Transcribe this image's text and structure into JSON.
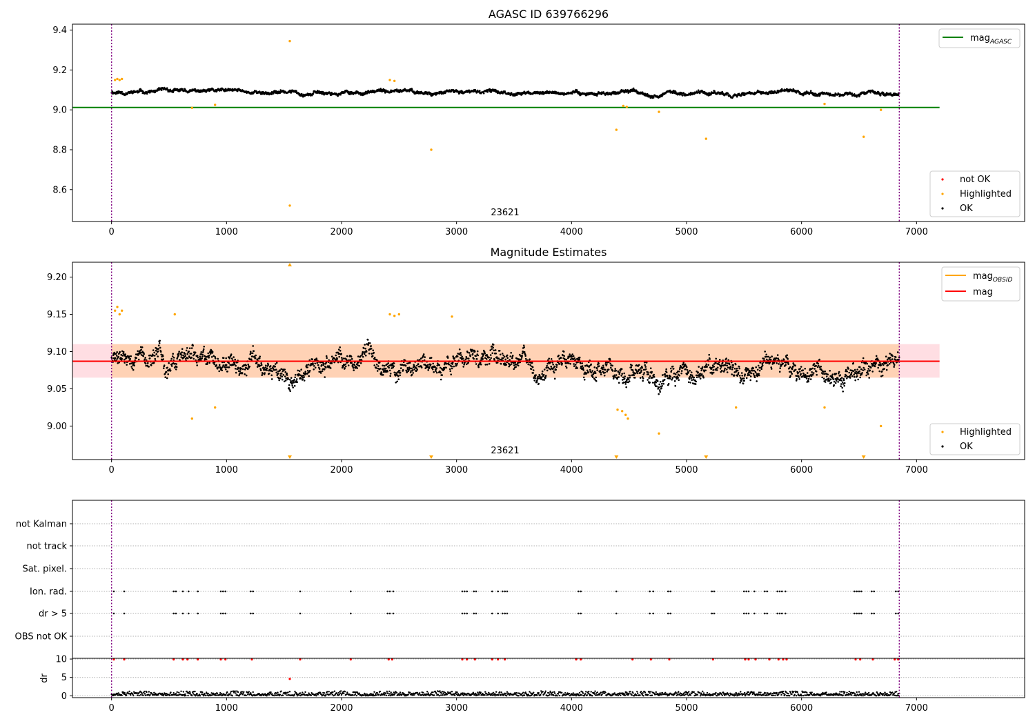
{
  "chart_data": [
    {
      "type": "scatter",
      "title": "AGASC ID 639766296",
      "xlim": [
        -340,
        7940
      ],
      "ylim": [
        8.44,
        9.43
      ],
      "xticks": [
        "0",
        "1000",
        "2000",
        "3000",
        "4000",
        "5000",
        "6000",
        "7000"
      ],
      "yticks": [
        "8.6",
        "8.8",
        "9.0",
        "9.2",
        "9.4"
      ],
      "vlines": [
        0,
        6850
      ],
      "annotation": {
        "text": "23621",
        "x": 3420,
        "y": 8.46
      },
      "legend_lines": [
        {
          "label": "mag",
          "sub": "AGASC",
          "color": "#008000"
        }
      ],
      "legend_points": [
        {
          "label": "not OK",
          "color": "#ff0000"
        },
        {
          "label": "Highlighted",
          "color": "#ffa500"
        },
        {
          "label": "OK",
          "color": "#000000"
        }
      ],
      "hline": {
        "y": 9.012,
        "x0": -340,
        "x1": 7200,
        "color": "#008000"
      },
      "ok_band": {
        "x0": 0,
        "x1": 6850,
        "center": 9.09,
        "spread": 0.018,
        "slope": -0.006
      },
      "highlighted": [
        {
          "x": 30,
          "y": 9.15
        },
        {
          "x": 50,
          "y": 9.155
        },
        {
          "x": 70,
          "y": 9.15
        },
        {
          "x": 90,
          "y": 9.155
        },
        {
          "x": 700,
          "y": 9.01
        },
        {
          "x": 900,
          "y": 9.025
        },
        {
          "x": 1550,
          "y": 9.345
        },
        {
          "x": 1550,
          "y": 8.52
        },
        {
          "x": 2420,
          "y": 9.15
        },
        {
          "x": 2460,
          "y": 9.145
        },
        {
          "x": 2780,
          "y": 8.8
        },
        {
          "x": 4390,
          "y": 8.9
        },
        {
          "x": 4450,
          "y": 9.02
        },
        {
          "x": 4480,
          "y": 9.015
        },
        {
          "x": 4760,
          "y": 8.99
        },
        {
          "x": 5170,
          "y": 8.855
        },
        {
          "x": 6200,
          "y": 9.03
        },
        {
          "x": 6540,
          "y": 8.865
        },
        {
          "x": 6690,
          "y": 9.0
        }
      ]
    },
    {
      "type": "scatter",
      "title": "Magnitude Estimates",
      "xlim": [
        -340,
        7940
      ],
      "ylim": [
        8.955,
        9.22
      ],
      "xticks": [
        "0",
        "1000",
        "2000",
        "3000",
        "4000",
        "5000",
        "6000",
        "7000"
      ],
      "yticks": [
        "9.00",
        "9.05",
        "9.10",
        "9.15",
        "9.20"
      ],
      "vlines": [
        0,
        6850
      ],
      "annotation": {
        "text": "23621",
        "x": 3420,
        "y": 8.959
      },
      "legend_lines": [
        {
          "label": "mag",
          "sub": "OBSID",
          "color": "#ffa500"
        },
        {
          "label": "mag",
          "sub": "",
          "color": "#ff0000"
        }
      ],
      "legend_points": [
        {
          "label": "Highlighted",
          "color": "#ffa500"
        },
        {
          "label": "OK",
          "color": "#000000"
        }
      ],
      "mag": 9.087,
      "band_lo": 9.065,
      "band_hi": 9.11,
      "band_x1": 7200,
      "ok_band": {
        "x0": 0,
        "x1": 6850,
        "center": 9.088,
        "spread": 0.025,
        "slope": -0.01
      },
      "highlighted": [
        {
          "x": 30,
          "y": 9.155
        },
        {
          "x": 50,
          "y": 9.16
        },
        {
          "x": 70,
          "y": 9.15
        },
        {
          "x": 90,
          "y": 9.155
        },
        {
          "x": 550,
          "y": 9.15
        },
        {
          "x": 700,
          "y": 9.01
        },
        {
          "x": 900,
          "y": 9.025
        },
        {
          "x": 2420,
          "y": 9.15
        },
        {
          "x": 2460,
          "y": 9.148
        },
        {
          "x": 2500,
          "y": 9.15
        },
        {
          "x": 2960,
          "y": 9.147
        },
        {
          "x": 4400,
          "y": 9.022
        },
        {
          "x": 4440,
          "y": 9.02
        },
        {
          "x": 4470,
          "y": 9.015
        },
        {
          "x": 4490,
          "y": 9.01
        },
        {
          "x": 4760,
          "y": 8.99
        },
        {
          "x": 5430,
          "y": 9.025
        },
        {
          "x": 6200,
          "y": 9.025
        },
        {
          "x": 6690,
          "y": 9.0
        }
      ],
      "up_markers": [
        1550
      ],
      "down_markers": [
        1550,
        2780,
        4390,
        5170,
        6540
      ]
    },
    {
      "type": "scatter",
      "title": "",
      "xlim": [
        -340,
        7940
      ],
      "xticks": [
        "0",
        "1000",
        "2000",
        "3000",
        "4000",
        "5000",
        "6000",
        "7000"
      ],
      "vlines": [
        0,
        6850
      ],
      "flag_labels": [
        "not Kalman",
        "not track",
        "Sat. pixel.",
        "Ion. rad.",
        "dr > 5",
        "OBS not OK"
      ],
      "flag_x": [
        20,
        110,
        540,
        560,
        620,
        670,
        750,
        950,
        970,
        990,
        1210,
        1230,
        1640,
        2080,
        2400,
        2420,
        2450,
        3050,
        3070,
        3090,
        3150,
        3170,
        3310,
        3360,
        3400,
        3420,
        3440,
        4060,
        4080,
        4390,
        4680,
        4710,
        4840,
        4860,
        5220,
        5240,
        5500,
        5520,
        5540,
        5590,
        5680,
        5700,
        5790,
        5810,
        5830,
        5860,
        6460,
        6480,
        6500,
        6520,
        6610,
        6630,
        6820,
        6840
      ],
      "dr_label": "dr",
      "dr_yticks": [
        "0",
        "5",
        "10"
      ],
      "dr_ylim": [
        -0.5,
        10.2
      ],
      "dr_outlier": {
        "x": 1550,
        "y": 4.6
      },
      "dr_high_x": [
        20,
        110,
        540,
        620,
        660,
        750,
        950,
        990,
        1220,
        1640,
        2080,
        2410,
        2440,
        3050,
        3090,
        3160,
        3310,
        3360,
        3420,
        4040,
        4080,
        4530,
        4690,
        4850,
        5230,
        5510,
        5540,
        5600,
        5720,
        5800,
        5840,
        5870,
        6470,
        6510,
        6620,
        6810,
        6840
      ]
    }
  ]
}
